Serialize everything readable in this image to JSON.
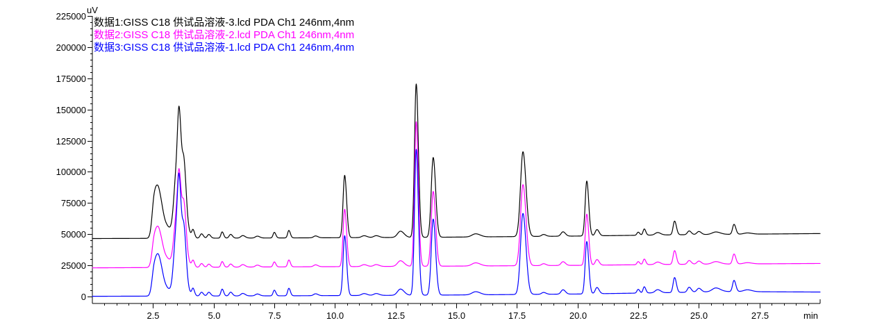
{
  "chart_data": {
    "type": "line",
    "y_unit": "uV",
    "x_unit": "min",
    "xlim": [
      0,
      30.0
    ],
    "ylim": [
      0,
      225000
    ],
    "x_ticks": [
      2.5,
      5.0,
      7.5,
      10.0,
      12.5,
      15.0,
      17.5,
      20.0,
      22.5,
      25.0,
      27.5
    ],
    "x_tick_labels": [
      "2.5",
      "5.0",
      "7.5",
      "10.0",
      "12.5",
      "15.0",
      "17.5",
      "20.0",
      "22.5",
      "25.0",
      "27.5"
    ],
    "x_minor_step": 0.5,
    "y_ticks": [
      0,
      25000,
      50000,
      75000,
      100000,
      125000,
      150000,
      175000,
      200000,
      225000
    ],
    "y_tick_labels": [
      "0",
      "25000",
      "50000",
      "75000",
      "100000",
      "125000",
      "150000",
      "175000",
      "200000",
      "225000"
    ],
    "y_minor_step": 5000,
    "grid": false,
    "legend_position": "top-left",
    "series": [
      {
        "name": "数据1:GISS C18 供试品溶液-3.lcd PDA Ch1 246nm,4nm",
        "color": "#000000",
        "baseline": 46500,
        "drift": [
          [
            0,
            46500
          ],
          [
            8,
            47000
          ],
          [
            14,
            47500
          ],
          [
            20,
            48500
          ],
          [
            24,
            49500
          ],
          [
            30,
            50500
          ]
        ],
        "peaks": [
          [
            2.55,
            28000,
            0.09
          ],
          [
            2.75,
            33500,
            0.12
          ],
          [
            3.1,
            8000,
            0.15
          ],
          [
            3.45,
            43000,
            0.1
          ],
          [
            3.58,
            65000,
            0.07
          ],
          [
            3.78,
            40000,
            0.07
          ],
          [
            3.7,
            20000,
            0.15
          ],
          [
            4.15,
            6000,
            0.05
          ],
          [
            4.5,
            3500,
            0.06
          ],
          [
            4.8,
            3000,
            0.06
          ],
          [
            5.35,
            5000,
            0.05
          ],
          [
            5.7,
            3000,
            0.06
          ],
          [
            6.2,
            2000,
            0.08
          ],
          [
            6.8,
            1500,
            0.08
          ],
          [
            7.5,
            4500,
            0.05
          ],
          [
            8.1,
            6000,
            0.05
          ],
          [
            9.2,
            1500,
            0.08
          ],
          [
            10.4,
            50000,
            0.065
          ],
          [
            11.2,
            1500,
            0.1
          ],
          [
            11.7,
            1500,
            0.1
          ],
          [
            12.7,
            5000,
            0.12
          ],
          [
            13.35,
            123000,
            0.07
          ],
          [
            14.05,
            64000,
            0.08
          ],
          [
            15.8,
            2500,
            0.15
          ],
          [
            17.75,
            68000,
            0.1
          ],
          [
            18.6,
            1500,
            0.08
          ],
          [
            19.4,
            3500,
            0.08
          ],
          [
            20.38,
            44000,
            0.065
          ],
          [
            20.8,
            5000,
            0.07
          ],
          [
            22.5,
            2500,
            0.05
          ],
          [
            22.75,
            5000,
            0.05
          ],
          [
            23.3,
            2000,
            0.1
          ],
          [
            24.0,
            11000,
            0.06
          ],
          [
            24.6,
            3000,
            0.07
          ],
          [
            25.0,
            2500,
            0.08
          ],
          [
            25.7,
            2000,
            0.15
          ],
          [
            26.45,
            8000,
            0.06
          ],
          [
            27.0,
            1000,
            0.15
          ]
        ]
      },
      {
        "name": "数据2:GISS C18 供试品溶液-2.lcd PDA Ch1 246nm,4nm",
        "color": "#ff00ff",
        "baseline": 23000,
        "drift": [
          [
            0,
            23000
          ],
          [
            8,
            23800
          ],
          [
            14,
            24300
          ],
          [
            20,
            25000
          ],
          [
            24,
            25800
          ],
          [
            30,
            26500
          ]
        ],
        "peaks": [
          [
            2.55,
            20000,
            0.09
          ],
          [
            2.75,
            27000,
            0.12
          ],
          [
            3.1,
            6000,
            0.15
          ],
          [
            3.45,
            33000,
            0.1
          ],
          [
            3.58,
            48000,
            0.07
          ],
          [
            3.78,
            35000,
            0.07
          ],
          [
            3.7,
            15000,
            0.15
          ],
          [
            4.15,
            5000,
            0.05
          ],
          [
            4.5,
            3000,
            0.06
          ],
          [
            4.8,
            2500,
            0.06
          ],
          [
            5.35,
            4500,
            0.05
          ],
          [
            5.7,
            2500,
            0.06
          ],
          [
            6.2,
            2000,
            0.08
          ],
          [
            6.8,
            1500,
            0.08
          ],
          [
            7.5,
            4000,
            0.05
          ],
          [
            8.1,
            5500,
            0.05
          ],
          [
            9.2,
            1500,
            0.08
          ],
          [
            10.4,
            46000,
            0.065
          ],
          [
            11.2,
            1500,
            0.1
          ],
          [
            11.7,
            1500,
            0.1
          ],
          [
            12.7,
            4500,
            0.12
          ],
          [
            13.35,
            116000,
            0.07
          ],
          [
            14.05,
            60000,
            0.08
          ],
          [
            15.8,
            2500,
            0.15
          ],
          [
            17.75,
            65000,
            0.1
          ],
          [
            18.6,
            1500,
            0.08
          ],
          [
            19.4,
            3000,
            0.08
          ],
          [
            20.38,
            41000,
            0.065
          ],
          [
            20.8,
            4500,
            0.07
          ],
          [
            22.5,
            2500,
            0.05
          ],
          [
            22.75,
            4500,
            0.05
          ],
          [
            23.3,
            2000,
            0.1
          ],
          [
            24.0,
            11000,
            0.06
          ],
          [
            24.6,
            3000,
            0.07
          ],
          [
            25.0,
            2500,
            0.08
          ],
          [
            25.7,
            2000,
            0.15
          ],
          [
            26.45,
            8000,
            0.06
          ],
          [
            27.0,
            1000,
            0.15
          ]
        ]
      },
      {
        "name": "数据3:GISS C18 供试品溶液-1.lcd PDA Ch1 246nm,4nm",
        "color": "#0000ff",
        "baseline": 200,
        "drift": [
          [
            0,
            200
          ],
          [
            8,
            600
          ],
          [
            14,
            1100
          ],
          [
            20,
            2000
          ],
          [
            24,
            3200
          ],
          [
            26,
            4000
          ],
          [
            30,
            3600
          ]
        ],
        "peaks": [
          [
            2.55,
            20000,
            0.09
          ],
          [
            2.75,
            28000,
            0.12
          ],
          [
            3.1,
            5000,
            0.15
          ],
          [
            3.45,
            45000,
            0.1
          ],
          [
            3.58,
            60000,
            0.07
          ],
          [
            3.78,
            38000,
            0.07
          ],
          [
            3.7,
            15000,
            0.15
          ],
          [
            4.15,
            5500,
            0.05
          ],
          [
            4.5,
            3000,
            0.06
          ],
          [
            4.8,
            3000,
            0.06
          ],
          [
            5.35,
            5500,
            0.05
          ],
          [
            5.7,
            3000,
            0.06
          ],
          [
            6.2,
            2000,
            0.08
          ],
          [
            6.8,
            1500,
            0.08
          ],
          [
            7.5,
            4500,
            0.05
          ],
          [
            8.1,
            6000,
            0.05
          ],
          [
            9.2,
            1500,
            0.08
          ],
          [
            10.4,
            48000,
            0.065
          ],
          [
            11.2,
            1500,
            0.1
          ],
          [
            11.7,
            1500,
            0.1
          ],
          [
            12.7,
            5000,
            0.12
          ],
          [
            13.35,
            117000,
            0.07
          ],
          [
            14.05,
            61000,
            0.08
          ],
          [
            15.8,
            2500,
            0.15
          ],
          [
            17.75,
            65000,
            0.1
          ],
          [
            18.6,
            1500,
            0.08
          ],
          [
            19.4,
            3500,
            0.08
          ],
          [
            20.38,
            42000,
            0.065
          ],
          [
            20.8,
            5000,
            0.07
          ],
          [
            22.5,
            3000,
            0.05
          ],
          [
            22.75,
            5000,
            0.05
          ],
          [
            23.3,
            2500,
            0.1
          ],
          [
            24.0,
            12000,
            0.06
          ],
          [
            24.6,
            4000,
            0.07
          ],
          [
            25.0,
            3000,
            0.08
          ],
          [
            25.7,
            3000,
            0.15
          ],
          [
            26.45,
            9000,
            0.06
          ],
          [
            27.0,
            1500,
            0.15
          ]
        ]
      }
    ]
  }
}
